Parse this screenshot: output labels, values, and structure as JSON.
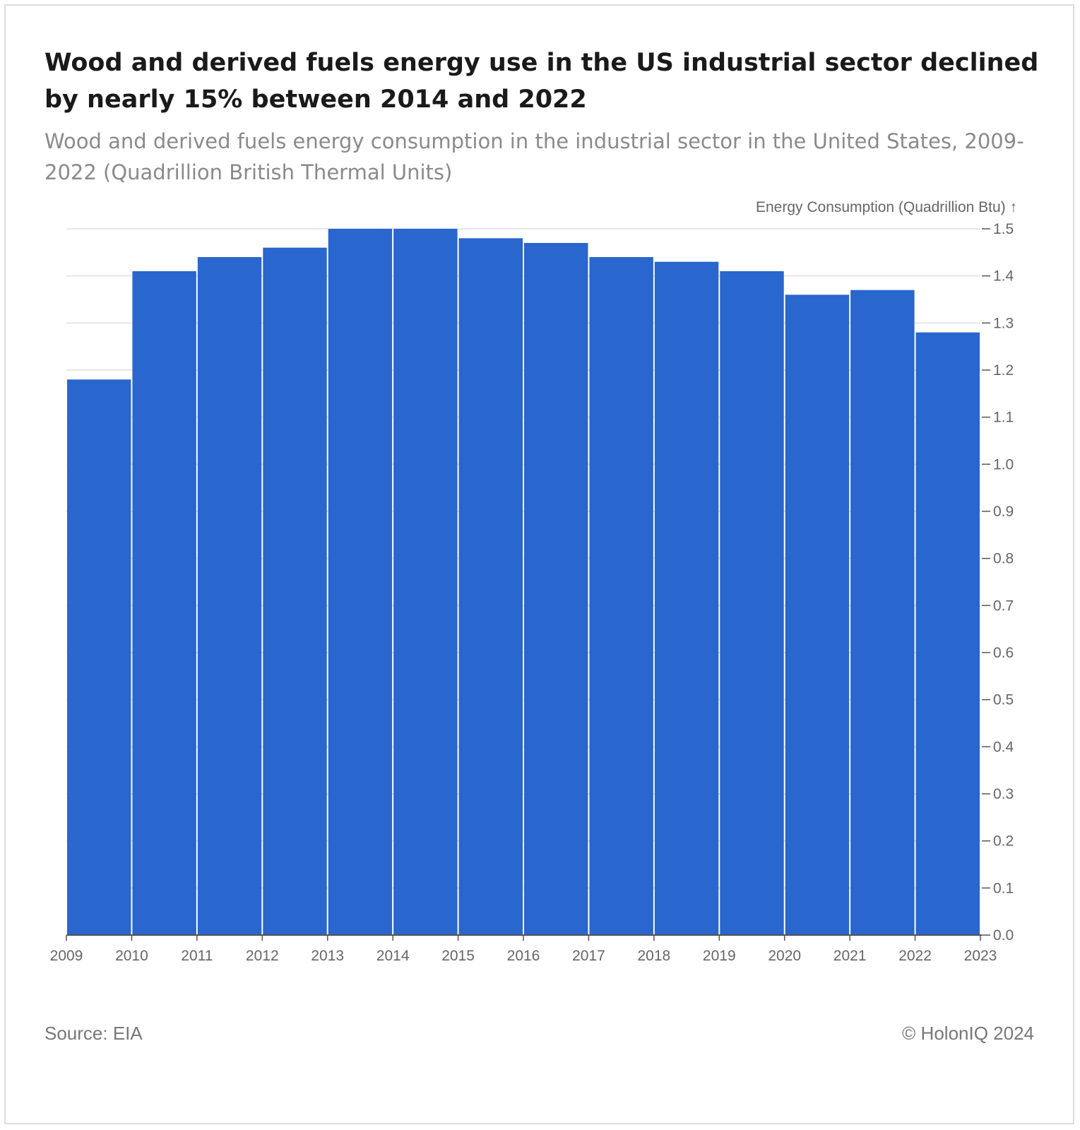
{
  "header": {
    "title": "Wood and derived fuels energy use in the US industrial sector declined by nearly 15% between 2014 and 2022",
    "subtitle": "Wood and derived fuels energy consumption in the industrial sector in the United States, 2009-2022 (Quadrillion British Thermal Units)"
  },
  "footer": {
    "source": "Source: EIA",
    "copyright": "© HolonIQ 2024"
  },
  "colors": {
    "bar": "#2966cd",
    "grid": "#e6e6e6",
    "axis": "#555555",
    "tick_text": "#666666"
  },
  "chart_data": {
    "type": "bar",
    "ylabel": "Energy Consumption (Quadrillion Btu) ↑",
    "ylim": [
      0,
      1.5
    ],
    "y_ticks": [
      "0.0",
      "0.1",
      "0.2",
      "0.3",
      "0.4",
      "0.5",
      "0.6",
      "0.7",
      "0.8",
      "0.9",
      "1.0",
      "1.1",
      "1.2",
      "1.3",
      "1.4",
      "1.5"
    ],
    "x_ticks": [
      "2009",
      "2010",
      "2011",
      "2012",
      "2013",
      "2014",
      "2015",
      "2016",
      "2017",
      "2018",
      "2019",
      "2020",
      "2021",
      "2022",
      "2023"
    ],
    "y_axis_position": "right",
    "grid": true,
    "bins": [
      {
        "start": 2009,
        "end": 2010,
        "value": 1.18
      },
      {
        "start": 2010,
        "end": 2011,
        "value": 1.41
      },
      {
        "start": 2011,
        "end": 2012,
        "value": 1.44
      },
      {
        "start": 2012,
        "end": 2013,
        "value": 1.46
      },
      {
        "start": 2013,
        "end": 2014,
        "value": 1.5
      },
      {
        "start": 2014,
        "end": 2015,
        "value": 1.5
      },
      {
        "start": 2015,
        "end": 2016,
        "value": 1.48
      },
      {
        "start": 2016,
        "end": 2017,
        "value": 1.47
      },
      {
        "start": 2017,
        "end": 2018,
        "value": 1.44
      },
      {
        "start": 2018,
        "end": 2019,
        "value": 1.43
      },
      {
        "start": 2019,
        "end": 2020,
        "value": 1.41
      },
      {
        "start": 2020,
        "end": 2021,
        "value": 1.36
      },
      {
        "start": 2021,
        "end": 2022,
        "value": 1.37
      },
      {
        "start": 2022,
        "end": 2023,
        "value": 1.28
      }
    ]
  }
}
